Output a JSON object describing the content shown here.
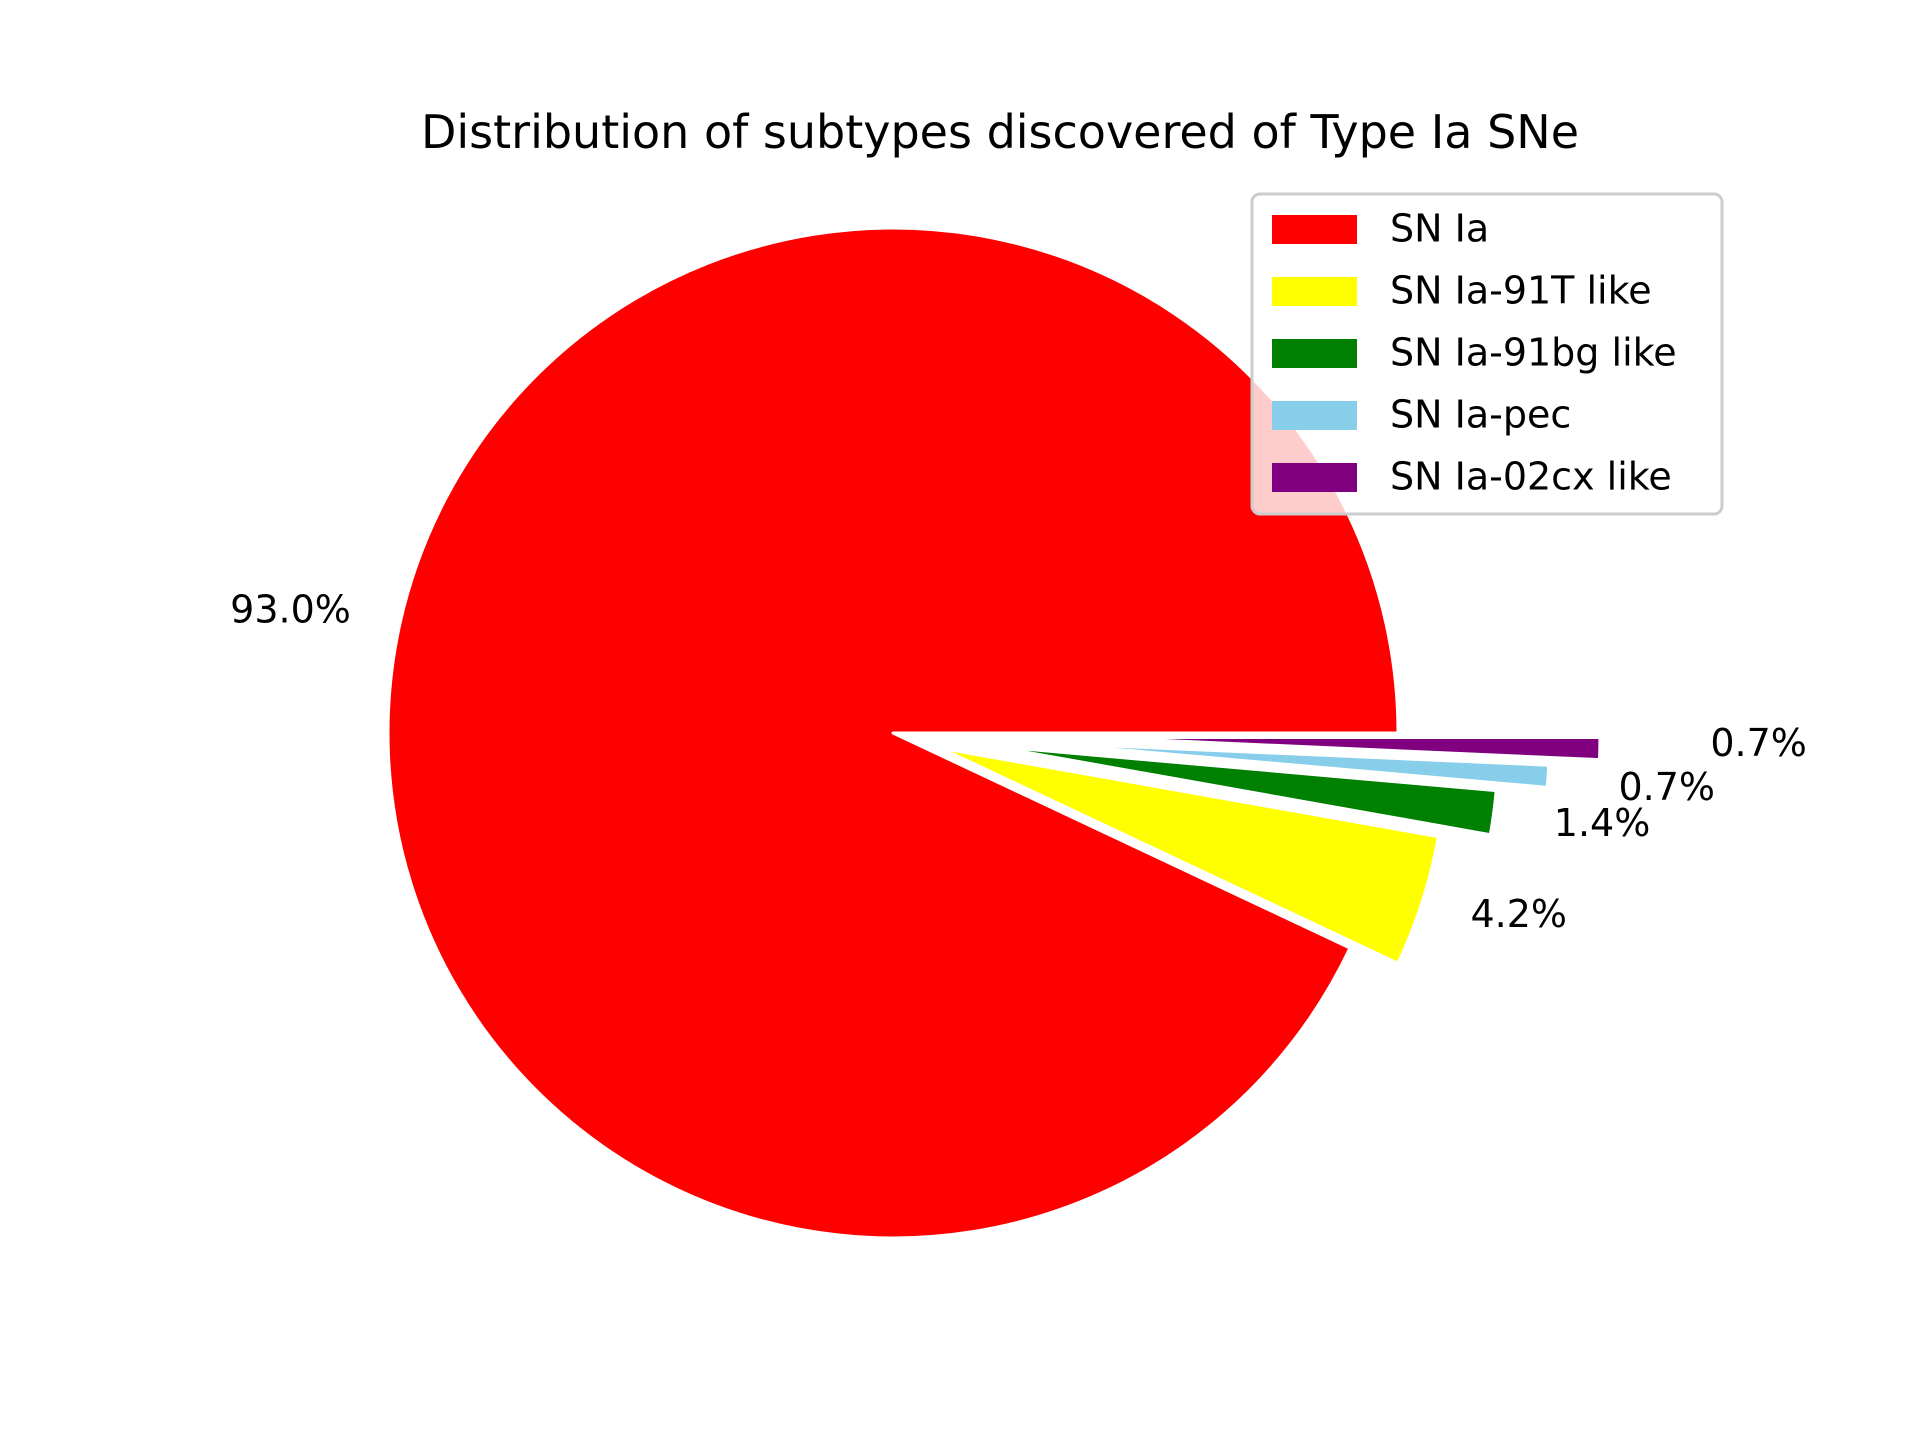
{
  "chart_data": {
    "type": "pie",
    "title": "Distribution of subtypes discovered of Type Ia SNe",
    "slices": [
      {
        "label": "SN Ia",
        "value": 93.0,
        "pct_label": "93.0%",
        "color": "#ff0000",
        "explode": 0
      },
      {
        "label": "SN Ia-91T like",
        "value": 4.2,
        "pct_label": "4.2%",
        "color": "#ffff00",
        "explode": 0.1
      },
      {
        "label": "SN Ia-91bg like",
        "value": 1.4,
        "pct_label": "1.4%",
        "color": "#008000",
        "explode": 0.2
      },
      {
        "label": "SN Ia-pec",
        "value": 0.7,
        "pct_label": "0.7%",
        "color": "#87ceeb",
        "explode": 0.3
      },
      {
        "label": "SN Ia-02cx like",
        "value": 0.7,
        "pct_label": "0.7%",
        "color": "#800080",
        "explode": 0.4
      }
    ],
    "start_angle_deg": 0,
    "direction": "counterclockwise",
    "legend_placement": "upper-right"
  }
}
